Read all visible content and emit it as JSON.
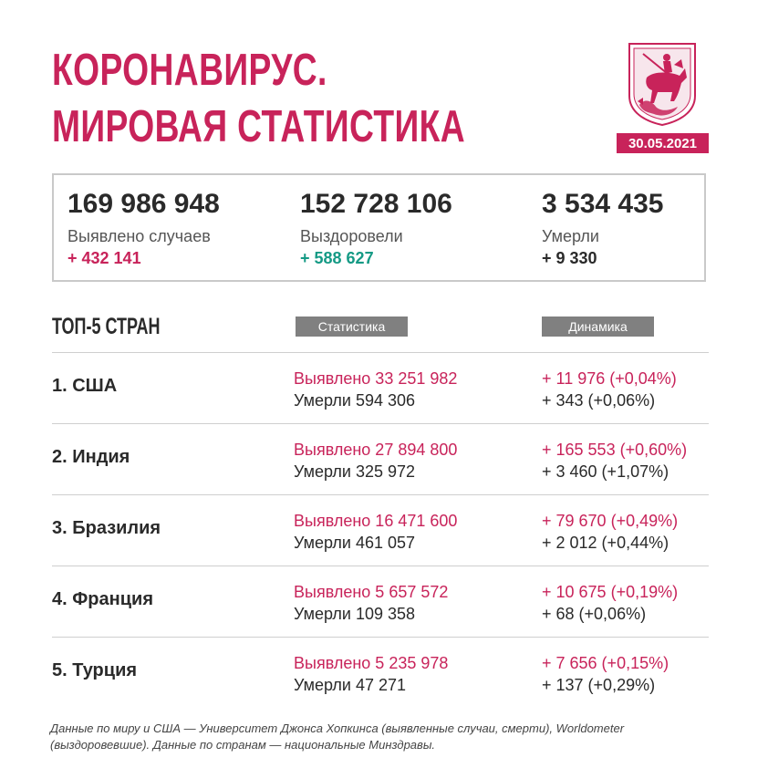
{
  "title": {
    "line1": "КОРОНАВИРУС.",
    "line2": "МИРОВАЯ СТАТИСТИКА"
  },
  "emblem": {
    "icon": "moscow-coat-of-arms-icon"
  },
  "date": "30.05.2021",
  "summary": {
    "cases": {
      "value": "169 986 948",
      "label": "Выявлено случаев",
      "delta": "+ 432 141"
    },
    "recovered": {
      "value": "152 728 106",
      "label": "Выздоровели",
      "delta": "+ 588 627"
    },
    "deaths": {
      "value": "3 534 435",
      "label": "Умерли",
      "delta": "+ 9 330"
    }
  },
  "table": {
    "heading": "ТОП-5 СТРАН",
    "stat_header": "Статистика",
    "dyn_header": "Динамика",
    "rows": [
      {
        "country": "1. США",
        "cases": "Выявлено 33 251 982",
        "deaths": "Умерли 594 306",
        "cases_delta": "+ 11 976 (+0,04%)",
        "deaths_delta": "+ 343 (+0,06%)"
      },
      {
        "country": "2. Индия",
        "cases": "Выявлено 27 894 800",
        "deaths": "Умерли 325 972",
        "cases_delta": "+ 165 553 (+0,60%)",
        "deaths_delta": "+ 3 460 (+1,07%)"
      },
      {
        "country": "3. Бразилия",
        "cases": "Выявлено 16 471 600",
        "deaths": "Умерли 461 057",
        "cases_delta": "+ 79 670 (+0,49%)",
        "deaths_delta": "+ 2 012 (+0,44%)"
      },
      {
        "country": "4. Франция",
        "cases": "Выявлено 5 657 572",
        "deaths": "Умерли 109 358",
        "cases_delta": "+ 10 675 (+0,19%)",
        "deaths_delta": "+ 68 (+0,06%)"
      },
      {
        "country": "5. Турция",
        "cases": "Выявлено 5 235 978",
        "deaths": "Умерли 47 271",
        "cases_delta": "+ 7 656 (+0,15%)",
        "deaths_delta": "+ 137 (+0,29%)"
      }
    ]
  },
  "footnote": "Данные по миру и США — Университет Джонса Хопкинса (выявленные случаи, смерти), Worldometer (выздоровевшие). Данные по странам — национальные Минздравы.",
  "colors": {
    "accent": "#c8235a",
    "teal": "#159a85",
    "gray_tag": "#808080",
    "border": "#c9c9c9"
  }
}
